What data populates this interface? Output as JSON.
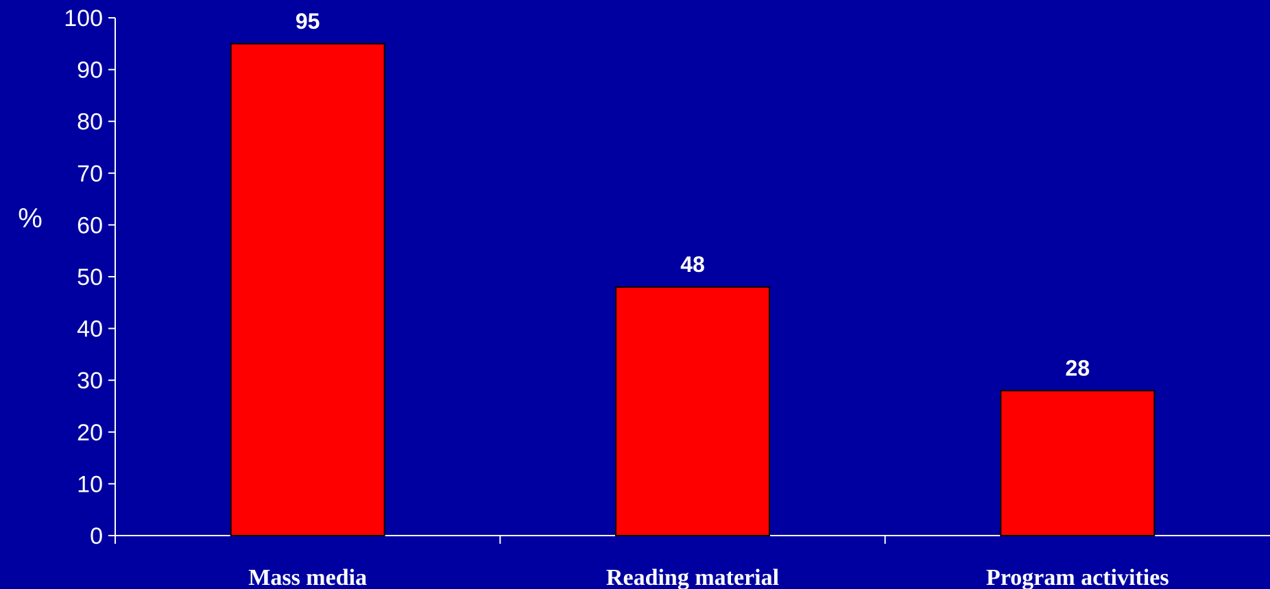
{
  "chart_data": {
    "type": "bar",
    "title": "",
    "xlabel": "",
    "ylabel": "%",
    "categories": [
      "Mass media",
      "Reading material",
      "Program activities"
    ],
    "values": [
      95,
      48,
      28
    ],
    "ylim": [
      0,
      100
    ],
    "yticks": [
      "0",
      "10",
      "20",
      "30",
      "40",
      "50",
      "60",
      "70",
      "80",
      "90",
      "100"
    ],
    "data_labels": [
      "95",
      "48",
      "28"
    ],
    "grid": false,
    "legend": "none"
  },
  "colors": {
    "background": "#0000A0",
    "bar_fill": "#FF0000",
    "bar_stroke": "#000000",
    "axis": "#FFFFFF",
    "text": "#FFFFFF"
  }
}
